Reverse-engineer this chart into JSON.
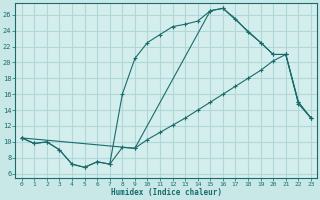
{
  "xlabel": "Humidex (Indice chaleur)",
  "bg_color": "#c8e8e8",
  "plot_bg_color": "#d4eeee",
  "grid_color": "#b0d8d8",
  "line_color": "#1a6b6b",
  "xlim": [
    -0.5,
    23.5
  ],
  "ylim": [
    5.5,
    27.5
  ],
  "xticks": [
    0,
    1,
    2,
    3,
    4,
    5,
    6,
    7,
    8,
    9,
    10,
    11,
    12,
    13,
    14,
    15,
    16,
    17,
    18,
    19,
    20,
    21,
    22,
    23
  ],
  "yticks": [
    6,
    8,
    10,
    12,
    14,
    16,
    18,
    20,
    22,
    24,
    26
  ],
  "curve1_x": [
    0,
    1,
    2,
    3,
    4,
    5,
    6,
    7,
    8,
    9,
    10,
    11,
    12,
    13,
    14,
    15,
    16,
    17,
    18,
    19,
    20,
    21,
    22,
    23
  ],
  "curve1_y": [
    10.5,
    9.8,
    10.0,
    9.0,
    7.2,
    6.8,
    7.5,
    7.2,
    9.3,
    9.2,
    10.3,
    11.2,
    12.1,
    13.0,
    14.0,
    15.0,
    16.0,
    17.0,
    18.0,
    19.0,
    20.2,
    21.0,
    14.8,
    13.0
  ],
  "curve2_x": [
    0,
    1,
    2,
    3,
    4,
    5,
    6,
    7,
    8,
    9,
    10,
    11,
    12,
    13,
    14,
    15,
    16,
    17,
    18,
    19,
    20,
    21,
    22,
    23
  ],
  "curve2_y": [
    10.5,
    9.8,
    10.0,
    9.0,
    7.2,
    6.8,
    7.5,
    7.2,
    16.0,
    20.5,
    22.5,
    23.5,
    24.5,
    24.8,
    25.2,
    26.5,
    26.8,
    25.5,
    23.8,
    22.5,
    21.0,
    21.0,
    15.0,
    13.0
  ],
  "curve3_x": [
    0,
    9,
    15,
    16,
    19,
    20,
    21,
    22,
    23
  ],
  "curve3_y": [
    10.5,
    9.2,
    26.5,
    26.8,
    22.5,
    21.0,
    21.0,
    15.0,
    13.0
  ]
}
